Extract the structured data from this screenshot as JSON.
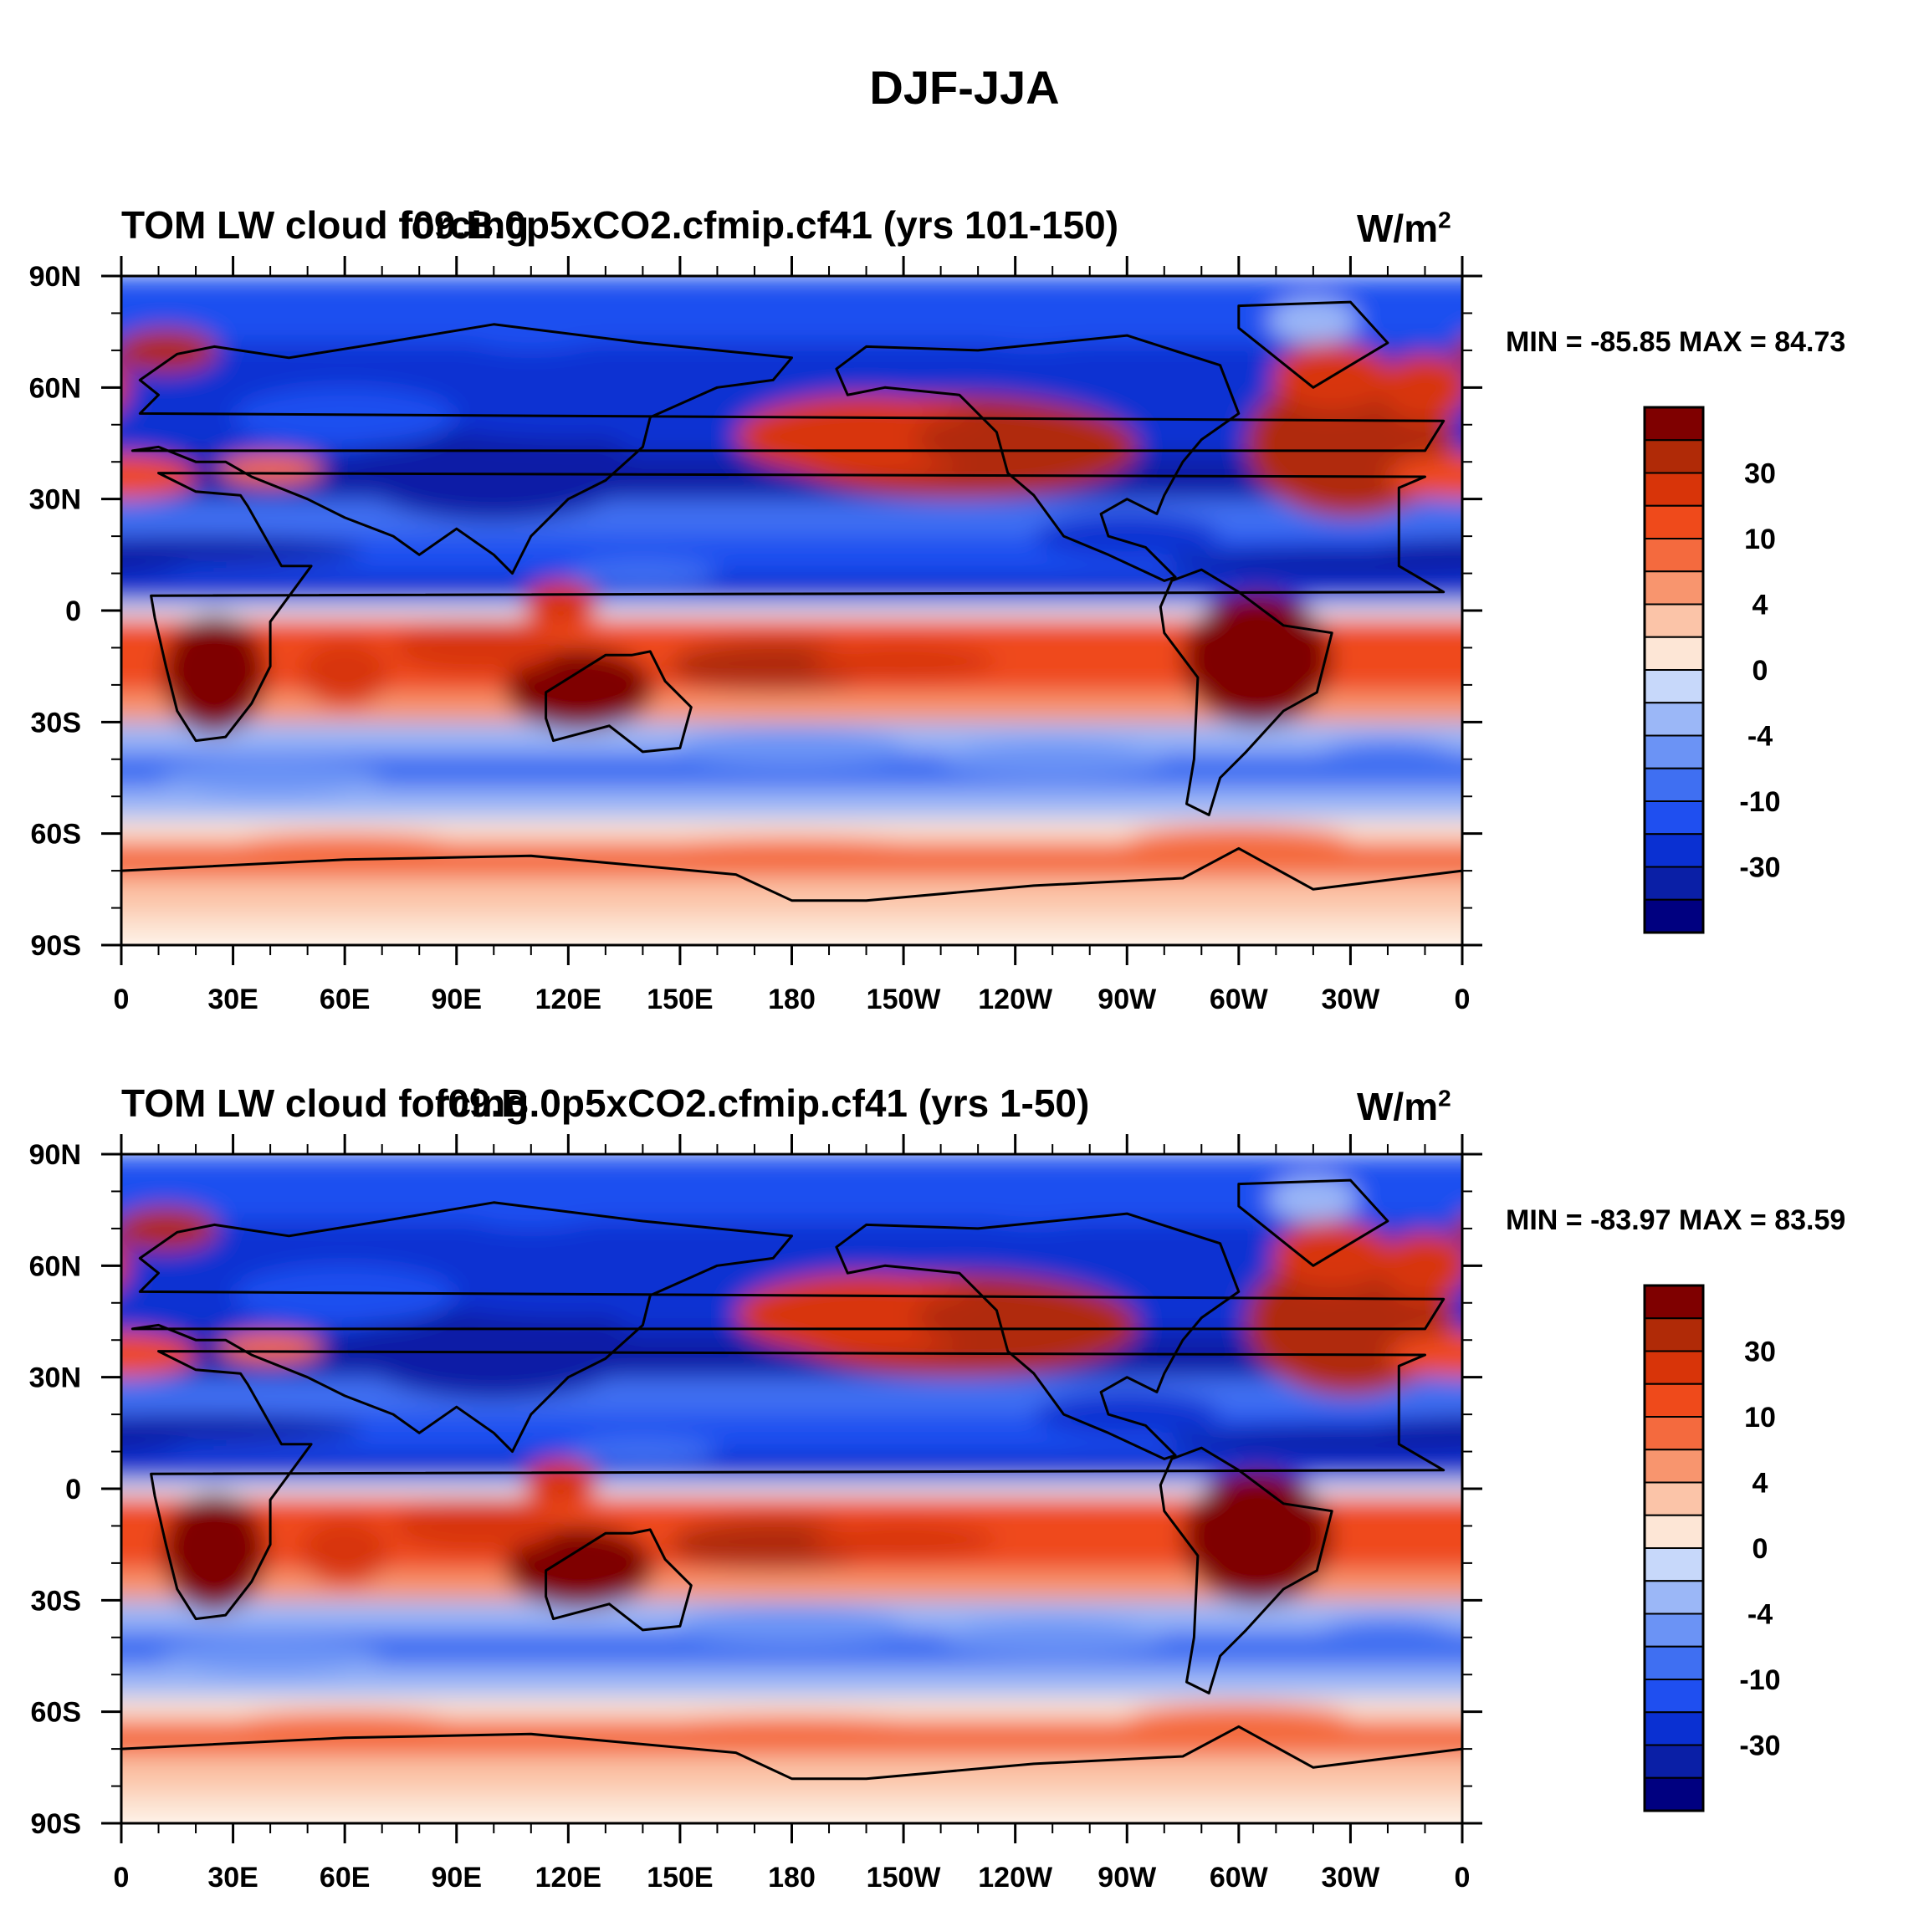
{
  "figure": {
    "title": "DJF-JJA"
  },
  "colors": {
    "land_outline": "#000000",
    "levels": [
      "#000080",
      "#0a1fa6",
      "#0a30d2",
      "#1f4ff0",
      "#3f6ff2",
      "#6b93f5",
      "#9bb7f7",
      "#c7d8fa",
      "#e6f0fc",
      "#fde6d6",
      "#fbc4a8",
      "#f8956e",
      "#f46a3e",
      "#ef4a1b",
      "#d83409",
      "#b02a07",
      "#7f0000"
    ]
  },
  "chart_data": [
    {
      "type": "heatmap",
      "projection": "cylindrical-equidistant",
      "title_left": "TOM LW cloud forcing",
      "title_center": "f09.B.0p5xCO2.cfmip.cf41 (yrs 101-150)",
      "units_base": "W/m",
      "units_exp": "2",
      "stats_text": "MIN = -85.85 MAX =  84.73",
      "min": -85.85,
      "max": 84.73,
      "x_ticks": [
        "0",
        "30E",
        "60E",
        "90E",
        "120E",
        "150E",
        "180",
        "150W",
        "120W",
        "90W",
        "60W",
        "30W",
        "0"
      ],
      "y_ticks": [
        "90N",
        "60N",
        "30N",
        "0",
        "30S",
        "60S",
        "90S"
      ],
      "colorbar_labels": [
        "30",
        "10",
        "4",
        "0",
        "-4",
        "-10",
        "-30"
      ],
      "xlim_deg_east": [
        0,
        360
      ],
      "ylim_deg_north": [
        -90,
        90
      ]
    },
    {
      "type": "heatmap",
      "projection": "cylindrical-equidistant",
      "title_left": "TOM LW cloud forcing",
      "title_center": "f09.B.0p5xCO2.cfmip.cf41 (yrs 1-50)",
      "units_base": "W/m",
      "units_exp": "2",
      "stats_text": "MIN = -83.97 MAX =  83.59",
      "min": -83.97,
      "max": 83.59,
      "x_ticks": [
        "0",
        "30E",
        "60E",
        "90E",
        "120E",
        "150E",
        "180",
        "150W",
        "120W",
        "90W",
        "60W",
        "30W",
        "0"
      ],
      "y_ticks": [
        "90N",
        "60N",
        "30N",
        "0",
        "30S",
        "60S",
        "90S"
      ],
      "colorbar_labels": [
        "30",
        "10",
        "4",
        "0",
        "-4",
        "-10",
        "-30"
      ],
      "xlim_deg_east": [
        0,
        360
      ],
      "ylim_deg_north": [
        -90,
        90
      ]
    }
  ]
}
